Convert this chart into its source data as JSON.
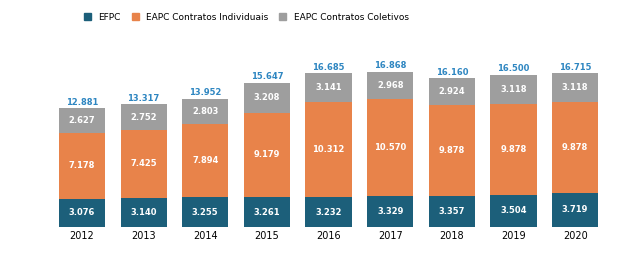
{
  "years": [
    2012,
    2013,
    2014,
    2015,
    2016,
    2017,
    2018,
    2019,
    2020
  ],
  "efpc": [
    3076,
    3140,
    3255,
    3261,
    3232,
    3329,
    3357,
    3504,
    3719
  ],
  "eapc_ind": [
    7178,
    7425,
    7894,
    9179,
    10312,
    10570,
    9878,
    9878,
    9878
  ],
  "eapc_col": [
    2627,
    2752,
    2803,
    3208,
    3141,
    2968,
    2924,
    3118,
    3118
  ],
  "totals": [
    12881,
    13317,
    13952,
    15647,
    16685,
    16868,
    16160,
    16500,
    16715
  ],
  "color_efpc": "#1c5f7a",
  "color_eapc_ind": "#e8834a",
  "color_eapc_col": "#9e9e9e",
  "bg_color": "#ffffff",
  "label_efpc": "EFPC",
  "label_eapc_ind": "EAPC Contratos Individuais",
  "label_eapc_col": "EAPC Contratos Coletivos",
  "total_color": "#2e86c1",
  "bar_width": 0.75,
  "ylim": [
    0,
    19500
  ],
  "inner_label_fontsize": 6.0,
  "total_label_fontsize": 6.0,
  "tick_fontsize": 7.0,
  "legend_fontsize": 6.5
}
